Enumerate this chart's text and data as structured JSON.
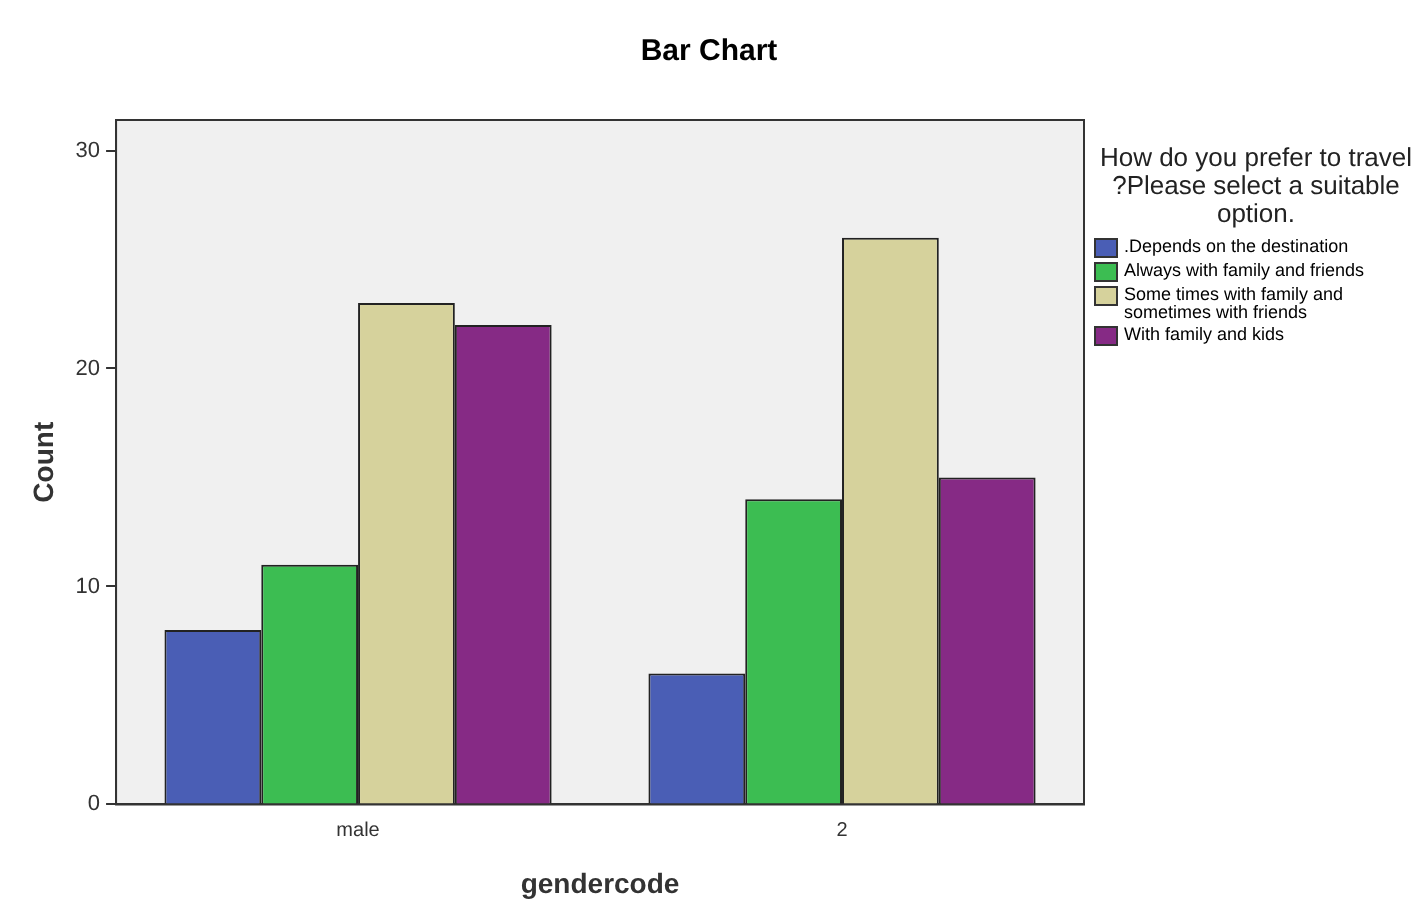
{
  "chart_data": {
    "type": "bar",
    "title": "Bar Chart",
    "xlabel": "gendercode",
    "ylabel": "Count",
    "legend_title": "How do you prefer to travel ?Please select a suitable option.",
    "categories": [
      "male",
      "2"
    ],
    "series": [
      {
        "name": ".Depends on the destination",
        "color": "#4a5eb5",
        "values": [
          8,
          6
        ]
      },
      {
        "name": "Always with family and friends",
        "color": "#3cbd52",
        "values": [
          11,
          14
        ]
      },
      {
        "name": "Some times with family  and sometimes with friends",
        "color": "#d6d29c",
        "values": [
          23,
          26
        ]
      },
      {
        "name": "With family and kids",
        "color": "#862a85",
        "values": [
          22,
          15
        ]
      }
    ],
    "ylim": [
      0,
      31.4
    ],
    "yticks": [
      0,
      10,
      20,
      30
    ],
    "grid": false,
    "legend": "right"
  }
}
